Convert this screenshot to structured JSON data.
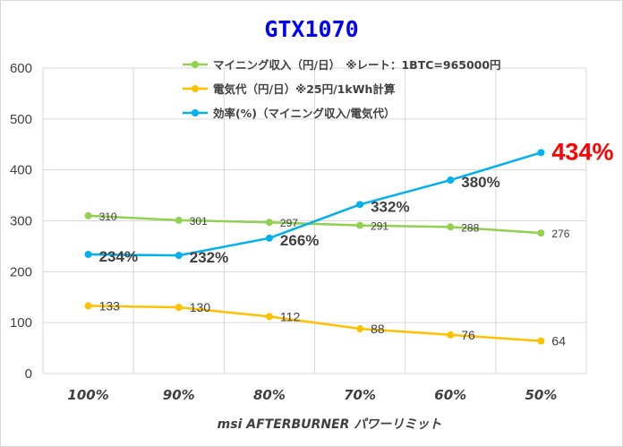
{
  "chart_data": {
    "type": "line",
    "title": "GTX1070",
    "xlabel": "msi AFTERBURNER パワーリミット",
    "ylabel": "",
    "categories": [
      "100%",
      "90%",
      "80%",
      "70%",
      "60%",
      "50%"
    ],
    "ylim": [
      0,
      600
    ],
    "yticks": [
      0,
      100,
      200,
      300,
      400,
      500,
      600
    ],
    "grid": true,
    "legend_position": "top",
    "series": [
      {
        "name": "マイニング収入（円/日）　※レート：1BTC=965000円",
        "values": [
          310,
          301,
          297,
          291,
          288,
          276
        ],
        "labels": [
          "310",
          "301",
          "297",
          "291",
          "288",
          "276"
        ],
        "color": "#92d050"
      },
      {
        "name": "電気代（円/日）※25円/1kWh計算",
        "values": [
          133,
          130,
          112,
          88,
          76,
          64
        ],
        "labels": [
          "133",
          "130",
          "112",
          "88",
          "76",
          "64"
        ],
        "color": "#ffc000"
      },
      {
        "name": "効率(%)（マイニング収入/電気代）",
        "values": [
          234,
          232,
          266,
          332,
          380,
          434
        ],
        "labels": [
          "234%",
          "232%",
          "266%",
          "332%",
          "380%",
          "434%"
        ],
        "color": "#00b0f0",
        "highlight_color": "#ff0000"
      }
    ]
  }
}
